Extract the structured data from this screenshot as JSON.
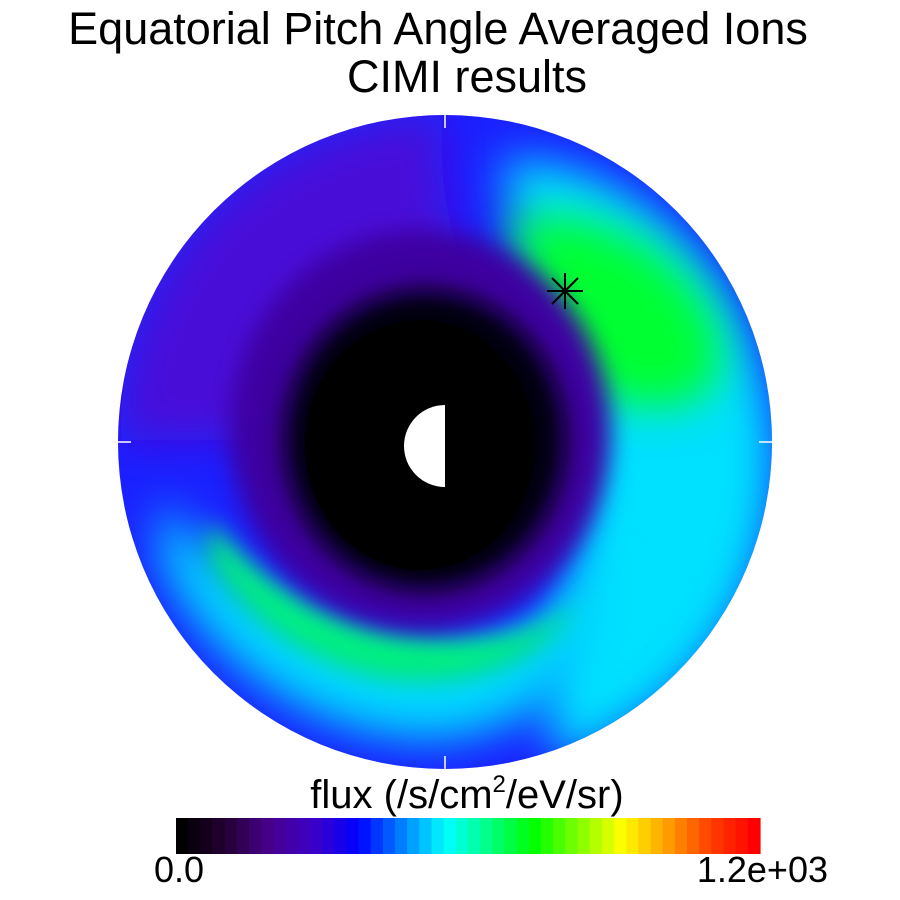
{
  "chart_data": {
    "type": "heatmap",
    "title_line1": "Equatorial Pitch Angle Averaged Ions",
    "title_line2": "CIMI results",
    "colorbar": {
      "label_prefix": "flux (/s/cm",
      "label_sup": "2",
      "label_suffix": "/eV/sr)",
      "min_label": "0.0",
      "max_label": "1.2e+03",
      "min": 0.0,
      "max": 1200,
      "colormap": [
        "#000000",
        "#250035",
        "#48008e",
        "#3c00c8",
        "#0000ff",
        "#0080ff",
        "#00ffff",
        "#00ff80",
        "#00ff00",
        "#80ff00",
        "#ffff00",
        "#ffa000",
        "#ff4000",
        "#ff0000"
      ]
    },
    "plot_geometry": "polar equatorial plane, Earth-centered, noon to the right",
    "earth": {
      "dayside": "white",
      "nightside": "black"
    },
    "marker": {
      "symbol": "asterisk",
      "description": "satellite position, pre-noon sector"
    },
    "flux_features": [
      {
        "region": "inner core",
        "approx_flux": 0
      },
      {
        "region": "dawn-noon outer belt",
        "approx_flux": 700
      },
      {
        "region": "dusk outer belt",
        "approx_flux": 600
      },
      {
        "region": "night outer edge",
        "approx_flux": 150
      }
    ]
  }
}
